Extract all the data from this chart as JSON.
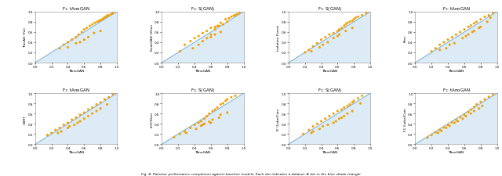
{
  "nrows": 2,
  "ncols": 4,
  "figsize": [
    6.4,
    2.26
  ],
  "dpi": 100,
  "bg_color": "#d6e8f5",
  "dot_color": "#f5a000",
  "dot_size": 5,
  "diag_color": "#7ab0d0",
  "diag_lw": 0.7,
  "figure_caption": "Fig. 4: Pairwise performance comparison against baseline models. Each dot indicates a dataset. A dot in the blue shade triangle",
  "subplots": [
    {
      "title": "F$_1$: tAnoGAN",
      "xlabel": "TAnoGAN",
      "ylabel": "TranAD (Tuli",
      "xlim": [
        0.0,
        1.0
      ],
      "ylim": [
        0.0,
        1.0
      ],
      "xticks": [
        0.0,
        0.2,
        0.4,
        0.6,
        0.8,
        1.0
      ],
      "yticks": [
        0.0,
        0.2,
        0.4,
        0.6,
        0.8,
        1.0
      ],
      "points_x": [
        0.95,
        0.93,
        0.9,
        0.88,
        0.87,
        0.85,
        0.84,
        0.82,
        0.8,
        0.78,
        0.76,
        0.73,
        0.7,
        0.67,
        0.63,
        0.6,
        0.57,
        0.53,
        0.5,
        0.45,
        0.4,
        0.35,
        0.3,
        0.55,
        0.65,
        0.72,
        0.8,
        0.4,
        0.5,
        0.6
      ],
      "points_y": [
        0.97,
        0.95,
        0.93,
        0.92,
        0.9,
        0.89,
        0.87,
        0.85,
        0.83,
        0.82,
        0.8,
        0.78,
        0.75,
        0.72,
        0.68,
        0.65,
        0.6,
        0.55,
        0.5,
        0.45,
        0.4,
        0.35,
        0.28,
        0.4,
        0.5,
        0.58,
        0.62,
        0.3,
        0.38,
        0.45
      ]
    },
    {
      "title": "F$_1$: S(GAN)",
      "xlabel": "TAnoGAN",
      "ylabel": "BeatGAN (Zhou",
      "xlim": [
        0.0,
        1.0
      ],
      "ylim": [
        0.0,
        1.0
      ],
      "xticks": [
        0.0,
        0.2,
        0.4,
        0.6,
        0.8,
        1.0
      ],
      "yticks": [
        0.0,
        0.2,
        0.4,
        0.6,
        0.8,
        1.0
      ],
      "points_x": [
        0.95,
        0.92,
        0.9,
        0.88,
        0.85,
        0.82,
        0.78,
        0.72,
        0.68,
        0.6,
        0.55,
        0.5,
        0.45,
        0.4,
        0.35,
        0.28,
        0.22,
        0.5,
        0.6,
        0.65,
        0.72,
        0.65,
        0.65,
        0.7,
        0.75,
        0.8,
        0.6,
        0.45,
        0.38,
        0.55
      ],
      "points_y": [
        0.97,
        0.95,
        0.93,
        0.92,
        0.9,
        0.87,
        0.85,
        0.78,
        0.72,
        0.68,
        0.62,
        0.58,
        0.52,
        0.48,
        0.42,
        0.35,
        0.22,
        0.42,
        0.5,
        0.55,
        0.6,
        0.65,
        0.7,
        0.72,
        0.75,
        0.8,
        0.55,
        0.35,
        0.28,
        0.48
      ]
    },
    {
      "title": "F$_1$: S(GAN)",
      "xlabel": "TAnoGAN",
      "ylabel": "Isolation Forest",
      "xlim": [
        0.0,
        1.0
      ],
      "ylim": [
        0.0,
        1.0
      ],
      "xticks": [
        0.0,
        0.2,
        0.4,
        0.6,
        0.8,
        1.0
      ],
      "yticks": [
        0.0,
        0.2,
        0.4,
        0.6,
        0.8,
        1.0
      ],
      "points_x": [
        0.95,
        0.9,
        0.85,
        0.82,
        0.8,
        0.78,
        0.75,
        0.72,
        0.7,
        0.68,
        0.65,
        0.62,
        0.6,
        0.55,
        0.5,
        0.45,
        0.4,
        0.35,
        0.3,
        0.25,
        0.2,
        0.55,
        0.62,
        0.7,
        0.48,
        0.38,
        0.28,
        0.42,
        0.6,
        0.78
      ],
      "points_y": [
        0.97,
        0.93,
        0.9,
        0.88,
        0.85,
        0.82,
        0.8,
        0.78,
        0.75,
        0.72,
        0.68,
        0.65,
        0.62,
        0.58,
        0.55,
        0.5,
        0.45,
        0.38,
        0.32,
        0.25,
        0.2,
        0.48,
        0.55,
        0.62,
        0.4,
        0.3,
        0.22,
        0.35,
        0.52,
        0.68
      ]
    },
    {
      "title": "F$_1$: tAnoGAN",
      "xlabel": "TAnoGAN",
      "ylabel": "Prec.",
      "xlim": [
        0.0,
        1.0
      ],
      "ylim": [
        0.0,
        1.0
      ],
      "xticks": [
        0.0,
        0.2,
        0.4,
        0.6,
        0.8,
        1.0
      ],
      "yticks": [
        0.0,
        0.2,
        0.4,
        0.6,
        0.8,
        1.0
      ],
      "points_x": [
        0.95,
        0.9,
        0.85,
        0.8,
        0.75,
        0.72,
        0.68,
        0.65,
        0.6,
        0.55,
        0.5,
        0.45,
        0.4,
        0.35,
        0.3,
        0.25,
        0.2,
        0.58,
        0.65,
        0.72,
        0.78,
        0.48,
        0.38,
        0.42,
        0.62,
        0.7,
        0.8,
        0.88,
        0.92,
        0.3
      ],
      "points_y": [
        0.97,
        0.93,
        0.9,
        0.85,
        0.8,
        0.77,
        0.73,
        0.7,
        0.65,
        0.6,
        0.55,
        0.5,
        0.45,
        0.4,
        0.35,
        0.28,
        0.22,
        0.48,
        0.55,
        0.62,
        0.68,
        0.38,
        0.28,
        0.35,
        0.52,
        0.6,
        0.7,
        0.8,
        0.88,
        0.25
      ]
    },
    {
      "title": "F$_1$: tAnoGAN",
      "xlabel": "TAnoGAN",
      "ylabel": "GBRT",
      "xlim": [
        0.0,
        1.0
      ],
      "ylim": [
        0.0,
        1.0
      ],
      "xticks": [
        0.0,
        0.2,
        0.4,
        0.6,
        0.8,
        1.0
      ],
      "yticks": [
        0.0,
        0.2,
        0.4,
        0.6,
        0.8,
        1.0
      ],
      "points_x": [
        0.95,
        0.9,
        0.85,
        0.8,
        0.75,
        0.7,
        0.65,
        0.6,
        0.55,
        0.5,
        0.45,
        0.4,
        0.35,
        0.3,
        0.25,
        0.2,
        0.15,
        0.55,
        0.65,
        0.75,
        0.48,
        0.6,
        0.7,
        0.4,
        0.28,
        0.42,
        0.52,
        0.8,
        0.32,
        0.88
      ],
      "points_y": [
        0.98,
        0.92,
        0.88,
        0.82,
        0.78,
        0.72,
        0.68,
        0.62,
        0.58,
        0.52,
        0.48,
        0.42,
        0.38,
        0.32,
        0.28,
        0.22,
        0.18,
        0.45,
        0.55,
        0.65,
        0.38,
        0.5,
        0.6,
        0.32,
        0.22,
        0.35,
        0.42,
        0.7,
        0.25,
        0.78
      ]
    },
    {
      "title": "F$_1$: S(GAN)",
      "xlabel": "TAnoGAN",
      "ylabel": "LOF/Dists",
      "xlim": [
        0.0,
        1.0
      ],
      "ylim": [
        0.0,
        1.0
      ],
      "xticks": [
        0.0,
        0.2,
        0.4,
        0.6,
        0.8,
        1.0
      ],
      "yticks": [
        0.0,
        0.2,
        0.4,
        0.6,
        0.8,
        1.0
      ],
      "points_x": [
        0.9,
        0.85,
        0.8,
        0.78,
        0.75,
        0.72,
        0.68,
        0.65,
        0.62,
        0.58,
        0.55,
        0.52,
        0.48,
        0.45,
        0.4,
        0.35,
        0.28,
        0.22,
        0.15,
        0.6,
        0.7,
        0.8,
        0.5,
        0.62,
        0.42,
        0.3,
        0.52,
        0.72,
        0.48,
        0.58
      ],
      "points_y": [
        0.95,
        0.92,
        0.88,
        0.85,
        0.8,
        0.78,
        0.72,
        0.68,
        0.65,
        0.6,
        0.55,
        0.5,
        0.45,
        0.42,
        0.38,
        0.32,
        0.25,
        0.2,
        0.14,
        0.42,
        0.52,
        0.62,
        0.38,
        0.48,
        0.3,
        0.22,
        0.4,
        0.58,
        0.36,
        0.44
      ]
    },
    {
      "title": "F$_1$: S(GAN)",
      "xlabel": "TAnoGAN",
      "ylabel": "IF (LabelCoin",
      "xlim": [
        0.0,
        1.0
      ],
      "ylim": [
        0.0,
        1.0
      ],
      "xticks": [
        0.0,
        0.2,
        0.4,
        0.6,
        0.8,
        1.0
      ],
      "yticks": [
        0.0,
        0.2,
        0.4,
        0.6,
        0.8,
        1.0
      ],
      "points_x": [
        0.9,
        0.85,
        0.8,
        0.78,
        0.75,
        0.72,
        0.68,
        0.65,
        0.6,
        0.55,
        0.5,
        0.45,
        0.4,
        0.35,
        0.3,
        0.25,
        0.18,
        0.55,
        0.65,
        0.72,
        0.48,
        0.58,
        0.38,
        0.28,
        0.42,
        0.62,
        0.78,
        0.88,
        0.3,
        0.68
      ],
      "points_y": [
        0.95,
        0.9,
        0.85,
        0.82,
        0.78,
        0.75,
        0.72,
        0.68,
        0.65,
        0.6,
        0.55,
        0.5,
        0.45,
        0.4,
        0.35,
        0.28,
        0.2,
        0.42,
        0.52,
        0.6,
        0.38,
        0.45,
        0.3,
        0.22,
        0.35,
        0.5,
        0.65,
        0.8,
        0.25,
        0.55
      ]
    },
    {
      "title": "F$_1$: tAnoGAN",
      "xlabel": "TAnoGAN",
      "ylabel": "F1 (LabelCoin",
      "xlim": [
        0.0,
        1.0
      ],
      "ylim": [
        0.0,
        1.0
      ],
      "xticks": [
        0.0,
        0.2,
        0.4,
        0.6,
        0.8,
        1.0
      ],
      "yticks": [
        0.0,
        0.2,
        0.4,
        0.6,
        0.8,
        1.0
      ],
      "points_x": [
        0.95,
        0.9,
        0.85,
        0.8,
        0.75,
        0.72,
        0.68,
        0.65,
        0.6,
        0.55,
        0.5,
        0.45,
        0.4,
        0.35,
        0.3,
        0.25,
        0.2,
        0.15,
        0.58,
        0.68,
        0.78,
        0.48,
        0.62,
        0.72,
        0.38,
        0.28,
        0.42,
        0.52,
        0.82,
        0.32
      ],
      "points_y": [
        0.97,
        0.93,
        0.88,
        0.83,
        0.78,
        0.73,
        0.68,
        0.63,
        0.58,
        0.53,
        0.48,
        0.43,
        0.38,
        0.33,
        0.28,
        0.23,
        0.18,
        0.13,
        0.5,
        0.6,
        0.7,
        0.42,
        0.55,
        0.65,
        0.32,
        0.22,
        0.36,
        0.45,
        0.75,
        0.26
      ]
    }
  ]
}
